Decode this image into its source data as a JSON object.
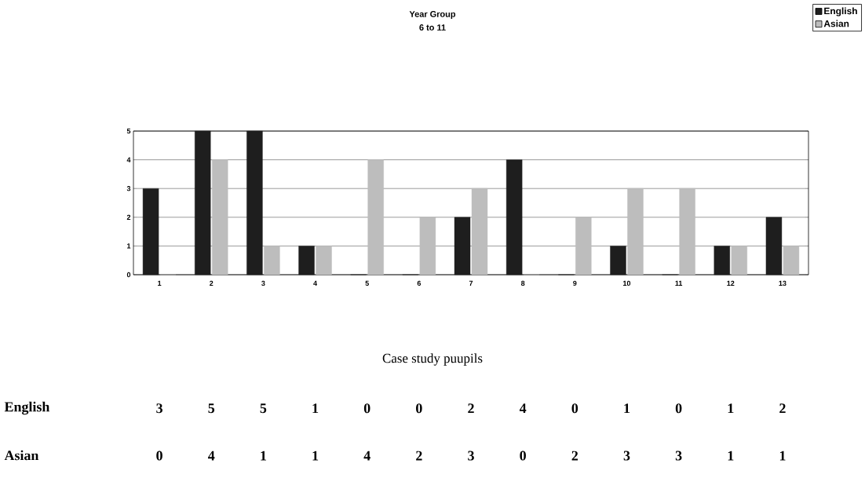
{
  "chart_data": {
    "type": "bar",
    "title": "Year Group",
    "subtitle": "6 to 11",
    "annotations": [
      "Case study puupils"
    ],
    "categories": [
      "1",
      "2",
      "3",
      "4",
      "5",
      "6",
      "7",
      "8",
      "9",
      "10",
      "11",
      "12",
      "13"
    ],
    "series": [
      {
        "name": "English",
        "color": "#1e1e1e",
        "values": [
          3,
          5,
          5,
          1,
          0,
          0,
          2,
          4,
          0,
          1,
          0,
          1,
          2
        ]
      },
      {
        "name": "Asian",
        "color": "#bdbdbd",
        "values": [
          0,
          4,
          1,
          1,
          4,
          2,
          3,
          0,
          2,
          3,
          3,
          1,
          1
        ]
      }
    ],
    "ylim": [
      0,
      5
    ],
    "yticks": [
      0,
      1,
      2,
      3,
      4,
      5
    ],
    "grid": "y",
    "legend": "top right",
    "data_labels": true
  }
}
